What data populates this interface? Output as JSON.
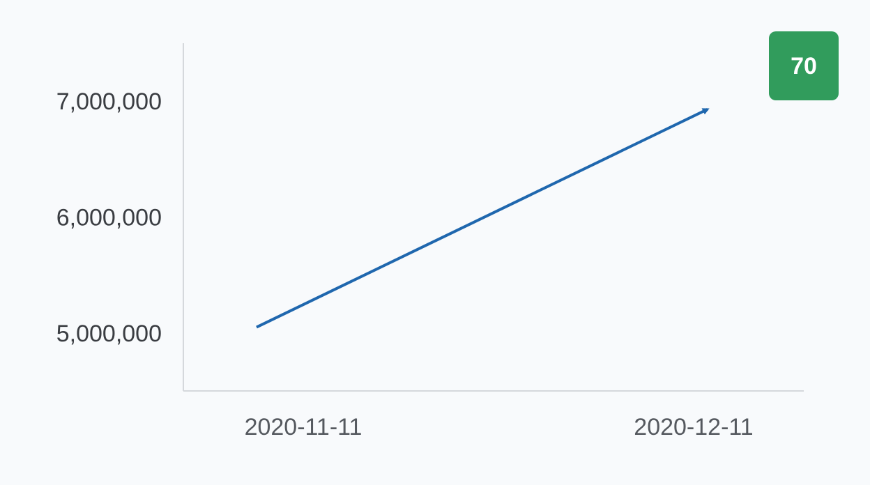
{
  "chart_data": {
    "type": "line",
    "x": [
      "2020-11-11",
      "2020-12-11"
    ],
    "y_ticks": [
      5000000,
      6000000,
      7000000
    ],
    "y_tick_labels": [
      "5,000,000",
      "6,000,000",
      "7,000,000"
    ],
    "x_tick_labels": [
      "2020-11-11",
      "2020-12-11"
    ],
    "series": [
      {
        "values": [
          5050000,
          6930000
        ],
        "color": "#1f67ae",
        "end_marker": "arrow"
      }
    ],
    "ylim": [
      4500000,
      7500000
    ],
    "grid": false
  },
  "badge": {
    "label": "70",
    "color": "#319c5c"
  },
  "colors": {
    "axis": "#d5d8dc",
    "background": "#f8fafc"
  }
}
